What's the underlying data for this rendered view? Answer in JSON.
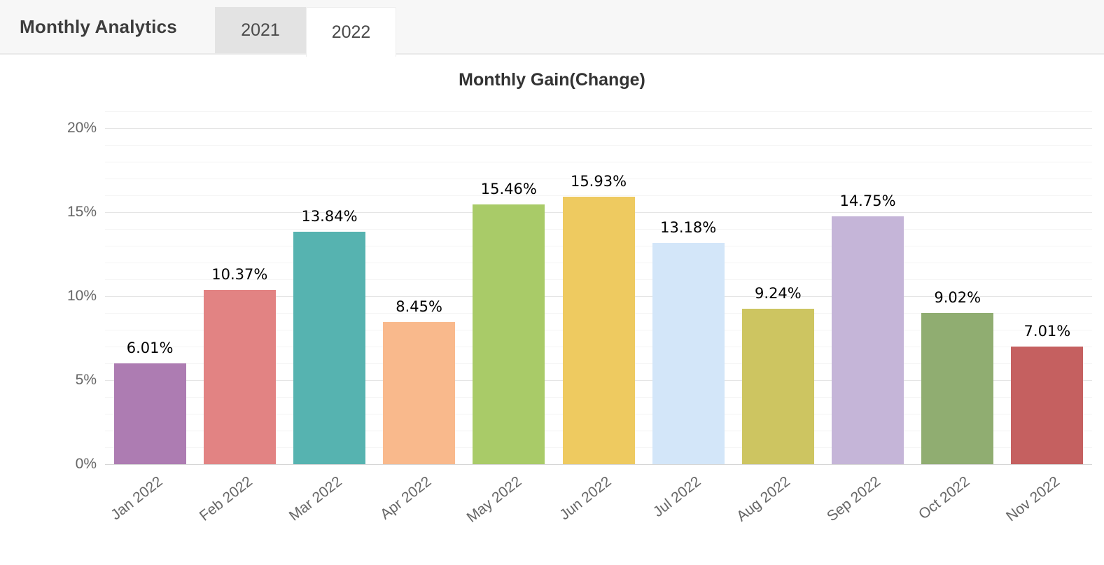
{
  "header": {
    "title": "Monthly Analytics",
    "tabs": [
      {
        "label": "2021",
        "active": false
      },
      {
        "label": "2022",
        "active": true
      }
    ]
  },
  "chart_data": {
    "type": "bar",
    "title": "Monthly Gain(Change)",
    "categories": [
      "Jan 2022",
      "Feb 2022",
      "Mar 2022",
      "Apr 2022",
      "May 2022",
      "Jun 2022",
      "Jul 2022",
      "Aug 2022",
      "Sep 2022",
      "Oct 2022",
      "Nov 2022"
    ],
    "values": [
      6.01,
      10.37,
      13.84,
      8.45,
      15.46,
      15.93,
      13.18,
      9.24,
      14.75,
      9.02,
      7.01
    ],
    "value_labels": [
      "6.01%",
      "10.37%",
      "13.84%",
      "8.45%",
      "15.46%",
      "15.93%",
      "13.18%",
      "9.24%",
      "14.75%",
      "9.02%",
      "7.01%"
    ],
    "bar_colors": [
      "#ad7cb2",
      "#e28383",
      "#56b3b0",
      "#f9b98c",
      "#a9cb68",
      "#eeca60",
      "#d3e6f9",
      "#cdc561",
      "#c5b5d8",
      "#90ad71",
      "#c56060"
    ],
    "xlabel": "",
    "ylabel": "",
    "ylim": [
      0,
      21
    ],
    "yticks": [
      0,
      5,
      10,
      15,
      20
    ],
    "ytick_labels": [
      "0%",
      "5%",
      "10%",
      "15%",
      "20%"
    ],
    "minor_tick_step": 1,
    "grid": true,
    "legend": "none",
    "styles": {
      "grid_major_color": "#e5e5e5",
      "grid_minor_color": "#f4f4f4",
      "axis_line_color": "#d6d6d6",
      "axis_label_color": "#666666",
      "data_label_color": "#000000",
      "title_color": "#333333",
      "header_bg": "#f7f7f7",
      "tab_inactive_bg": "#e3e3e3",
      "tab_active_bg": "#ffffff"
    }
  }
}
